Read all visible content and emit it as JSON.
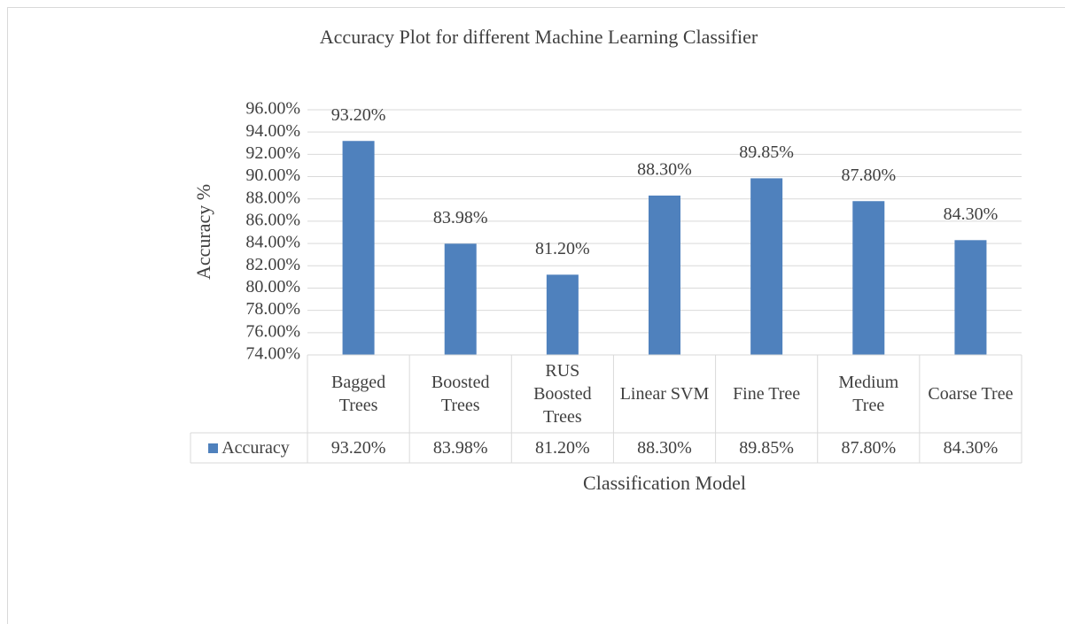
{
  "chart_data": {
    "type": "bar",
    "title": "Accuracy Plot for different Machine Learning Classifier",
    "x_label": "Classification Model",
    "y_label": "Accuracy %",
    "categories": [
      "Bagged Trees",
      "Boosted Trees",
      "RUS Boosted Trees",
      "Linear SVM",
      "Fine Tree",
      "Medium Tree",
      "Coarse Tree"
    ],
    "series": [
      {
        "name": "Accuracy",
        "color": "#4f81bd",
        "values": [
          93.2,
          83.98,
          81.2,
          88.3,
          89.85,
          87.8,
          84.3
        ],
        "value_labels": [
          "93.20%",
          "83.98%",
          "81.20%",
          "88.30%",
          "89.85%",
          "87.80%",
          "84.30%"
        ]
      }
    ],
    "ylim": [
      74,
      96
    ],
    "yticks": [
      {
        "value": 74,
        "label": "74.00%"
      },
      {
        "value": 76,
        "label": "76.00%"
      },
      {
        "value": 78,
        "label": "78.00%"
      },
      {
        "value": 80,
        "label": "80.00%"
      },
      {
        "value": 82,
        "label": "82.00%"
      },
      {
        "value": 84,
        "label": "84.00%"
      },
      {
        "value": 86,
        "label": "86.00%"
      },
      {
        "value": 88,
        "label": "88.00%"
      },
      {
        "value": 90,
        "label": "90.00%"
      },
      {
        "value": 92,
        "label": "92.00%"
      },
      {
        "value": 94,
        "label": "94.00%"
      },
      {
        "value": 96,
        "label": "96.00%"
      }
    ],
    "grid": true,
    "data_table": true
  }
}
